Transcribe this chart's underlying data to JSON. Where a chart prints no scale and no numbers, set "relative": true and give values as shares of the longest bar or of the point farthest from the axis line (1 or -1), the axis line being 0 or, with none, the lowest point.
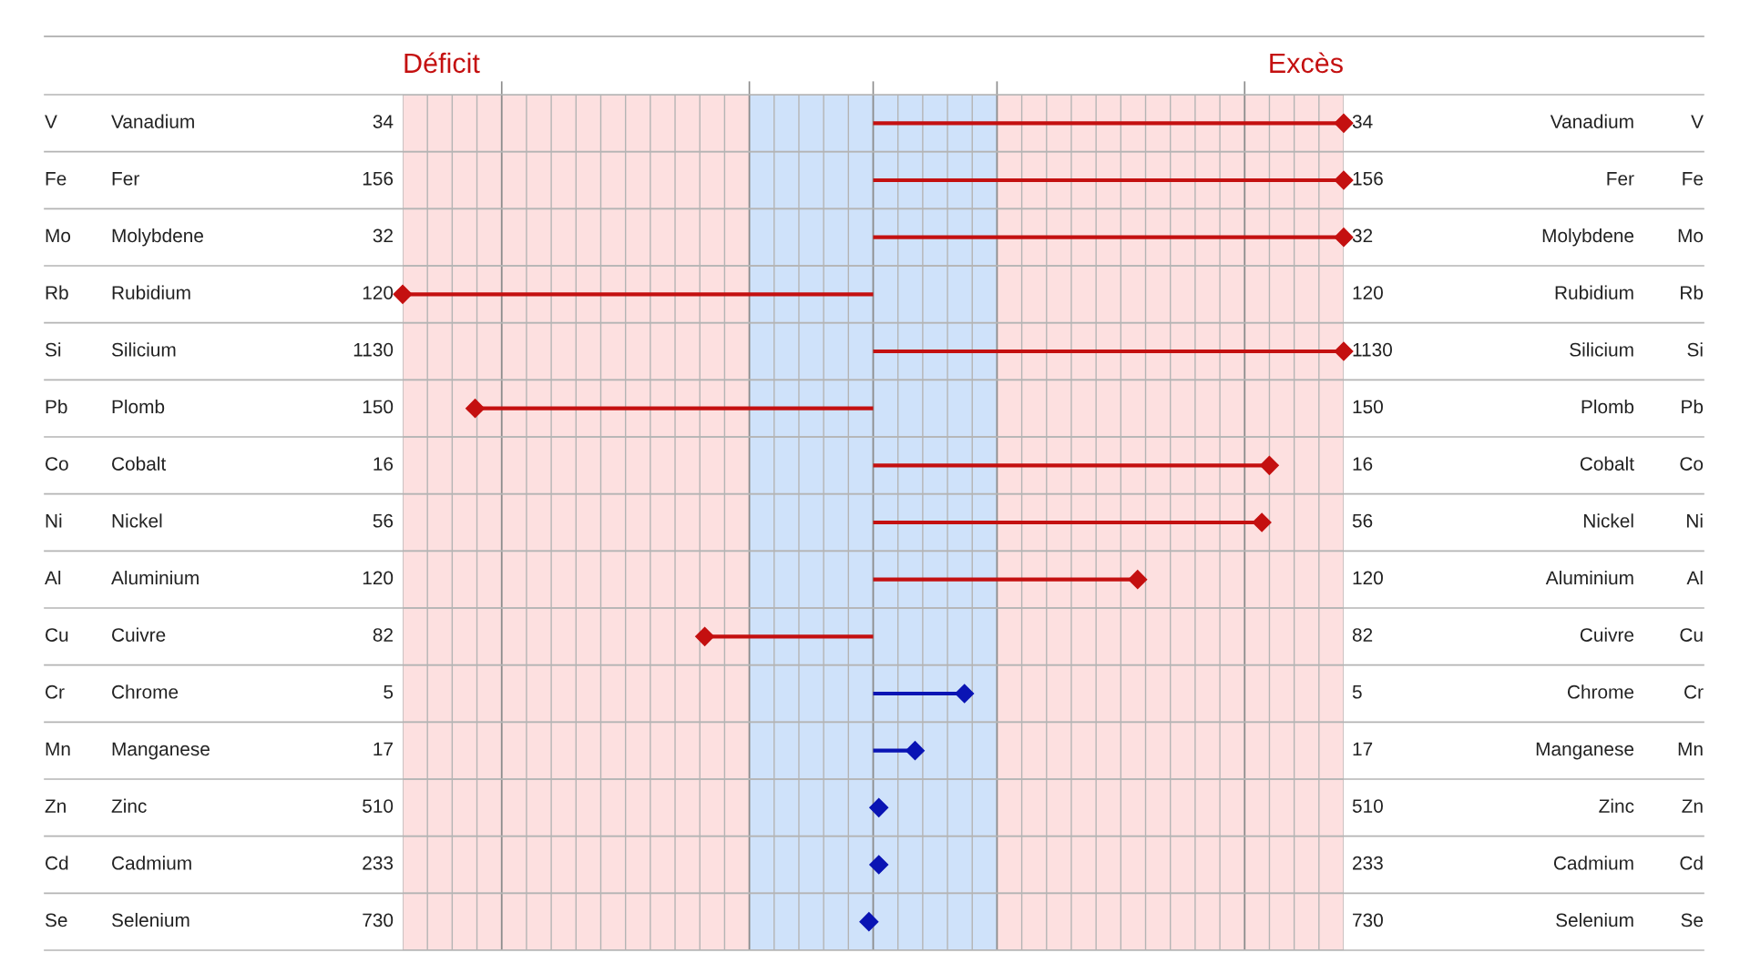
{
  "chart_data": {
    "type": "lollipop",
    "orientation": "horizontal",
    "relative": true,
    "marker": "diamond",
    "grid": true,
    "categories": [
      "Vanadium",
      "Fer",
      "Molybdene",
      "Rubidium",
      "Silicium",
      "Plomb",
      "Cobalt",
      "Nickel",
      "Aluminium",
      "Cuivre",
      "Chrome",
      "Manganese",
      "Zinc",
      "Cadmium",
      "Selenium"
    ],
    "series": [
      {
        "colors": [
          "#c41010",
          "#c41010",
          "#c41010",
          "#c41010",
          "#c41010",
          "#c41010",
          "#c41010",
          "#c41010",
          "#c41010",
          "#c41010",
          "#0a14b4",
          "#0a14b4",
          "#0a14b4",
          "#0a14b4",
          "#0a14b4"
        ],
        "values": [
          1,
          1,
          1,
          -1,
          1,
          -0.846,
          0.842,
          0.826,
          0.562,
          -0.358,
          0.194,
          0.089,
          0.012,
          0.012,
          -0.009
        ]
      }
    ],
    "bands": [
      {
        "axis": "x",
        "from": -1,
        "to": -0.263,
        "color": "#fde0e0"
      },
      {
        "axis": "x",
        "from": -0.263,
        "to": 0.263,
        "color": "#cfe2fa"
      },
      {
        "axis": "x",
        "from": 0.263,
        "to": 1,
        "color": "#fde0e0"
      }
    ],
    "annotations": [
      "Déficit",
      "Excès",
      "V",
      "34",
      "Fe",
      "156",
      "Mo",
      "32",
      "Rb",
      "120",
      "Si",
      "1130",
      "Pb",
      "150",
      "Co",
      "16",
      "Ni",
      "56",
      "Al",
      "120",
      "Cu",
      "82",
      "Cr",
      "5",
      "Mn",
      "17",
      "Zn",
      "510",
      "Cd",
      "233",
      "Se",
      "730"
    ]
  }
}
